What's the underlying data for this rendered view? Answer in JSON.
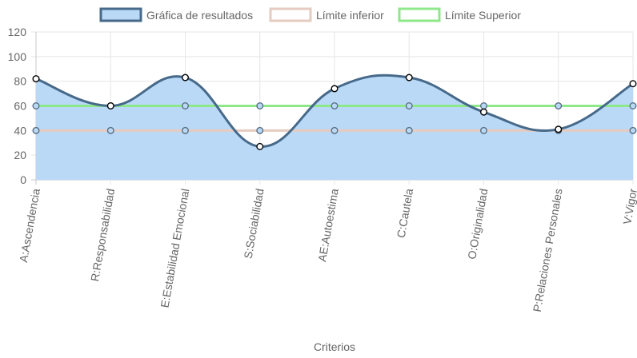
{
  "chart_data": {
    "type": "line",
    "xlabel": "Criterios",
    "ylabel": "",
    "ylim": [
      0,
      120
    ],
    "yticks": [
      0,
      20,
      40,
      60,
      80,
      100,
      120
    ],
    "grid": true,
    "legend_position": "top",
    "categories": [
      "A:Ascendencia",
      "R:Responsabilidad",
      "E:Estabilidad Emocional",
      "S:Sociabilidad",
      "AE:Autoestima",
      "C:Cautela",
      "O:Originalidad",
      "P:Relaciones Personales",
      "V:Vigor"
    ],
    "series": [
      {
        "name": "Gráfica de resultados",
        "values": [
          82,
          60,
          83,
          27,
          74,
          83,
          55,
          41,
          78
        ],
        "line_color": "#476a8a",
        "fill_color": "#b9d9f7",
        "point_fill": "#ffffff",
        "point_stroke": "#000000",
        "fill": true
      },
      {
        "name": "Límite inferior",
        "values": [
          40,
          40,
          40,
          40,
          40,
          40,
          40,
          40,
          40
        ],
        "line_color": "#e6cbc0",
        "point_fill": "#b9d9f7",
        "point_stroke": "#5a6f82",
        "fill": false
      },
      {
        "name": "Límite Superior",
        "values": [
          60,
          60,
          60,
          60,
          60,
          60,
          60,
          60,
          60
        ],
        "line_color": "#8ee88a",
        "point_fill": "#b9d9f7",
        "point_stroke": "#5a6f82",
        "fill": false
      }
    ]
  }
}
